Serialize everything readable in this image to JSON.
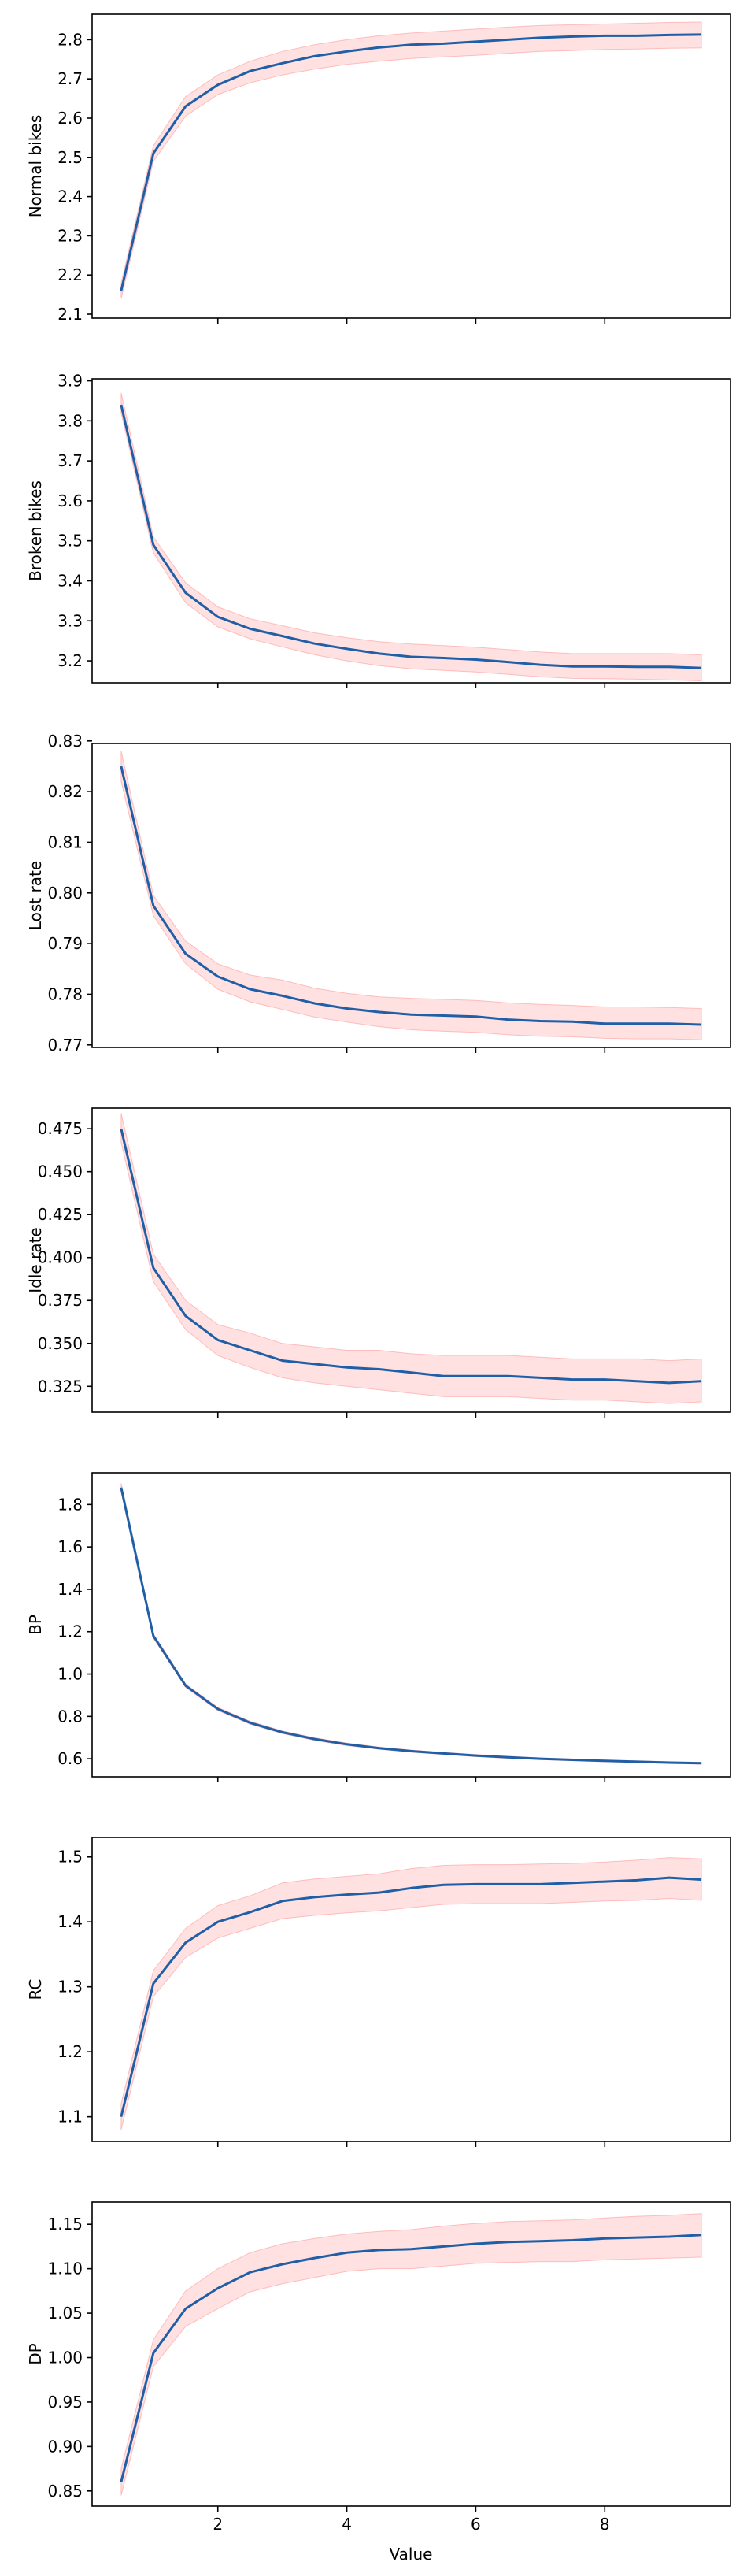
{
  "chart_data": [
    {
      "type": "line",
      "ylabel": "Normal bikes",
      "xlabel": "",
      "xlim": [
        0.05,
        9.95
      ],
      "ylim": [
        2.09,
        2.865
      ],
      "xticks": [
        2,
        4,
        6,
        8
      ],
      "yticks": [
        2.1,
        2.2,
        2.3,
        2.4,
        2.5,
        2.6,
        2.7,
        2.8
      ],
      "ytick_labels": [
        "2.1",
        "2.2",
        "2.3",
        "2.4",
        "2.5",
        "2.6",
        "2.7",
        "2.8"
      ],
      "series": [
        {
          "x": [
            0.5,
            1.0,
            1.5,
            2.0,
            2.5,
            3.0,
            3.5,
            4.0,
            4.5,
            5.0,
            5.5,
            6.0,
            6.5,
            7.0,
            7.5,
            8.0,
            8.5,
            9.0,
            9.5
          ],
          "y": [
            2.16,
            2.51,
            2.63,
            2.685,
            2.72,
            2.74,
            2.758,
            2.77,
            2.78,
            2.787,
            2.79,
            2.795,
            2.8,
            2.805,
            2.808,
            2.81,
            2.81,
            2.812,
            2.813
          ],
          "lower": [
            2.14,
            2.49,
            2.605,
            2.66,
            2.69,
            2.71,
            2.725,
            2.737,
            2.745,
            2.752,
            2.756,
            2.76,
            2.765,
            2.77,
            2.772,
            2.775,
            2.776,
            2.778,
            2.779
          ],
          "upper": [
            2.18,
            2.53,
            2.655,
            2.71,
            2.745,
            2.77,
            2.787,
            2.8,
            2.81,
            2.817,
            2.822,
            2.827,
            2.832,
            2.836,
            2.838,
            2.84,
            2.842,
            2.844,
            2.845
          ]
        }
      ]
    },
    {
      "type": "line",
      "ylabel": "Broken bikes",
      "xlabel": "",
      "xlim": [
        0.05,
        9.95
      ],
      "ylim": [
        3.145,
        3.905
      ],
      "xticks": [
        2,
        4,
        6,
        8
      ],
      "yticks": [
        3.2,
        3.3,
        3.4,
        3.5,
        3.6,
        3.7,
        3.8,
        3.9
      ],
      "ytick_labels": [
        "3.2",
        "3.3",
        "3.4",
        "3.5",
        "3.6",
        "3.7",
        "3.8",
        "3.9"
      ],
      "series": [
        {
          "x": [
            0.5,
            1.0,
            1.5,
            2.0,
            2.5,
            3.0,
            3.5,
            4.0,
            4.5,
            5.0,
            5.5,
            6.0,
            6.5,
            7.0,
            7.5,
            8.0,
            8.5,
            9.0,
            9.5
          ],
          "y": [
            3.84,
            3.49,
            3.37,
            3.31,
            3.28,
            3.262,
            3.243,
            3.23,
            3.218,
            3.21,
            3.207,
            3.203,
            3.197,
            3.19,
            3.186,
            3.186,
            3.185,
            3.185,
            3.182
          ],
          "lower": [
            3.82,
            3.47,
            3.345,
            3.285,
            3.255,
            3.235,
            3.215,
            3.2,
            3.188,
            3.18,
            3.176,
            3.172,
            3.166,
            3.16,
            3.156,
            3.155,
            3.154,
            3.152,
            3.15
          ],
          "upper": [
            3.87,
            3.51,
            3.395,
            3.335,
            3.305,
            3.288,
            3.27,
            3.258,
            3.248,
            3.242,
            3.238,
            3.234,
            3.228,
            3.222,
            3.218,
            3.218,
            3.218,
            3.218,
            3.215
          ]
        }
      ]
    },
    {
      "type": "line",
      "ylabel": "Lost rate",
      "xlabel": "",
      "xlim": [
        0.05,
        9.95
      ],
      "ylim": [
        0.7695,
        0.8295
      ],
      "xticks": [
        2,
        4,
        6,
        8
      ],
      "yticks": [
        0.77,
        0.78,
        0.79,
        0.8,
        0.81,
        0.82,
        0.83
      ],
      "ytick_labels": [
        "0.77",
        "0.78",
        "0.79",
        "0.80",
        "0.81",
        "0.82",
        "0.83"
      ],
      "series": [
        {
          "x": [
            0.5,
            1.0,
            1.5,
            2.0,
            2.5,
            3.0,
            3.5,
            4.0,
            4.5,
            5.0,
            5.5,
            6.0,
            6.5,
            7.0,
            7.5,
            8.0,
            8.5,
            9.0,
            9.5
          ],
          "y": [
            0.825,
            0.7975,
            0.788,
            0.7835,
            0.781,
            0.7797,
            0.7782,
            0.7772,
            0.7765,
            0.776,
            0.7758,
            0.7756,
            0.775,
            0.7747,
            0.7746,
            0.7742,
            0.7742,
            0.7742,
            0.774
          ],
          "lower": [
            0.822,
            0.7955,
            0.786,
            0.781,
            0.7785,
            0.777,
            0.7755,
            0.7745,
            0.7736,
            0.773,
            0.7727,
            0.7725,
            0.772,
            0.7717,
            0.7716,
            0.7713,
            0.7712,
            0.7712,
            0.771
          ],
          "upper": [
            0.828,
            0.7995,
            0.7905,
            0.786,
            0.7838,
            0.7828,
            0.7812,
            0.7802,
            0.7795,
            0.7792,
            0.779,
            0.7788,
            0.7783,
            0.778,
            0.7778,
            0.7775,
            0.7775,
            0.7774,
            0.7772
          ]
        }
      ]
    },
    {
      "type": "line",
      "ylabel": "Idle rate",
      "xlabel": "",
      "xlim": [
        0.05,
        9.95
      ],
      "ylim": [
        0.31,
        0.487
      ],
      "xticks": [
        2,
        4,
        6,
        8
      ],
      "yticks": [
        0.325,
        0.35,
        0.375,
        0.4,
        0.425,
        0.45,
        0.475
      ],
      "ytick_labels": [
        "0.325",
        "0.350",
        "0.375",
        "0.400",
        "0.425",
        "0.450",
        "0.475"
      ],
      "series": [
        {
          "x": [
            0.5,
            1.0,
            1.5,
            2.0,
            2.5,
            3.0,
            3.5,
            4.0,
            4.5,
            5.0,
            5.5,
            6.0,
            6.5,
            7.0,
            7.5,
            8.0,
            8.5,
            9.0,
            9.5
          ],
          "y": [
            0.475,
            0.394,
            0.366,
            0.352,
            0.346,
            0.34,
            0.338,
            0.336,
            0.335,
            0.333,
            0.331,
            0.331,
            0.331,
            0.33,
            0.329,
            0.329,
            0.328,
            0.327,
            0.328
          ],
          "lower": [
            0.467,
            0.386,
            0.358,
            0.343,
            0.336,
            0.33,
            0.327,
            0.325,
            0.323,
            0.321,
            0.319,
            0.319,
            0.319,
            0.318,
            0.317,
            0.317,
            0.316,
            0.315,
            0.316
          ],
          "upper": [
            0.484,
            0.402,
            0.375,
            0.361,
            0.356,
            0.35,
            0.348,
            0.346,
            0.346,
            0.344,
            0.343,
            0.343,
            0.343,
            0.342,
            0.341,
            0.341,
            0.341,
            0.34,
            0.341
          ]
        }
      ]
    },
    {
      "type": "line",
      "ylabel": "BP",
      "xlabel": "",
      "xlim": [
        0.05,
        9.95
      ],
      "ylim": [
        0.515,
        1.95
      ],
      "xticks": [
        2,
        4,
        6,
        8
      ],
      "yticks": [
        0.6,
        0.8,
        1.0,
        1.2,
        1.4,
        1.6,
        1.8
      ],
      "ytick_labels": [
        "0.6",
        "0.8",
        "1.0",
        "1.2",
        "1.4",
        "1.6",
        "1.8"
      ],
      "series": [
        {
          "x": [
            0.5,
            1.0,
            1.5,
            2.0,
            2.5,
            3.0,
            3.5,
            4.0,
            4.5,
            5.0,
            5.5,
            6.0,
            6.5,
            7.0,
            7.5,
            8.0,
            8.5,
            9.0,
            9.5
          ],
          "y": [
            1.88,
            1.18,
            0.945,
            0.835,
            0.77,
            0.725,
            0.693,
            0.668,
            0.65,
            0.636,
            0.625,
            0.615,
            0.607,
            0.6,
            0.595,
            0.59,
            0.586,
            0.582,
            0.579
          ],
          "lower": [
            1.86,
            1.17,
            0.937,
            0.828,
            0.763,
            0.719,
            0.687,
            0.662,
            0.645,
            0.631,
            0.62,
            0.61,
            0.602,
            0.596,
            0.591,
            0.586,
            0.582,
            0.578,
            0.575
          ],
          "upper": [
            1.9,
            1.19,
            0.953,
            0.842,
            0.777,
            0.731,
            0.699,
            0.674,
            0.655,
            0.641,
            0.63,
            0.62,
            0.612,
            0.604,
            0.599,
            0.594,
            0.59,
            0.586,
            0.583
          ]
        }
      ]
    },
    {
      "type": "line",
      "ylabel": "RC",
      "xlabel": "",
      "xlim": [
        0.05,
        9.95
      ],
      "ylim": [
        1.062,
        1.53
      ],
      "xticks": [
        2,
        4,
        6,
        8
      ],
      "yticks": [
        1.1,
        1.2,
        1.3,
        1.4,
        1.5
      ],
      "ytick_labels": [
        "1.1",
        "1.2",
        "1.3",
        "1.4",
        "1.5"
      ],
      "series": [
        {
          "x": [
            0.5,
            1.0,
            1.5,
            2.0,
            2.5,
            3.0,
            3.5,
            4.0,
            4.5,
            5.0,
            5.5,
            6.0,
            6.5,
            7.0,
            7.5,
            8.0,
            8.5,
            9.0,
            9.5
          ],
          "y": [
            1.1,
            1.305,
            1.368,
            1.4,
            1.415,
            1.432,
            1.438,
            1.442,
            1.445,
            1.452,
            1.457,
            1.458,
            1.458,
            1.458,
            1.46,
            1.462,
            1.464,
            1.468,
            1.465
          ],
          "lower": [
            1.08,
            1.285,
            1.345,
            1.375,
            1.39,
            1.405,
            1.41,
            1.414,
            1.417,
            1.422,
            1.427,
            1.428,
            1.428,
            1.428,
            1.43,
            1.432,
            1.433,
            1.436,
            1.433
          ],
          "upper": [
            1.12,
            1.325,
            1.39,
            1.425,
            1.44,
            1.46,
            1.466,
            1.47,
            1.474,
            1.482,
            1.487,
            1.488,
            1.488,
            1.489,
            1.49,
            1.492,
            1.495,
            1.499,
            1.497
          ]
        }
      ]
    },
    {
      "type": "line",
      "ylabel": "DP",
      "xlabel": "Value",
      "xlim": [
        0.05,
        9.95
      ],
      "ylim": [
        0.833,
        1.175
      ],
      "xticks": [
        2,
        4,
        6,
        8
      ],
      "xtick_labels": [
        "2",
        "4",
        "6",
        "8"
      ],
      "yticks": [
        0.85,
        0.9,
        0.95,
        1.0,
        1.05,
        1.1,
        1.15
      ],
      "ytick_labels": [
        "0.85",
        "0.90",
        "0.95",
        "1.00",
        "1.05",
        "1.10",
        "1.15"
      ],
      "series": [
        {
          "x": [
            0.5,
            1.0,
            1.5,
            2.0,
            2.5,
            3.0,
            3.5,
            4.0,
            4.5,
            5.0,
            5.5,
            6.0,
            6.5,
            7.0,
            7.5,
            8.0,
            8.5,
            9.0,
            9.5
          ],
          "y": [
            0.86,
            1.005,
            1.055,
            1.078,
            1.096,
            1.105,
            1.112,
            1.118,
            1.121,
            1.122,
            1.125,
            1.128,
            1.13,
            1.131,
            1.132,
            1.134,
            1.135,
            1.136,
            1.138
          ],
          "lower": [
            0.845,
            0.99,
            1.035,
            1.055,
            1.074,
            1.083,
            1.09,
            1.097,
            1.1,
            1.1,
            1.103,
            1.106,
            1.107,
            1.108,
            1.108,
            1.11,
            1.111,
            1.112,
            1.113
          ],
          "upper": [
            0.875,
            1.02,
            1.075,
            1.1,
            1.118,
            1.128,
            1.134,
            1.139,
            1.142,
            1.144,
            1.148,
            1.151,
            1.153,
            1.154,
            1.155,
            1.157,
            1.159,
            1.16,
            1.162
          ]
        }
      ]
    }
  ],
  "colors": {
    "line": "#1f5fa8",
    "band_fill": "#ffc9c9",
    "band_edge": "#ff9a9a",
    "axes": "#000000"
  }
}
